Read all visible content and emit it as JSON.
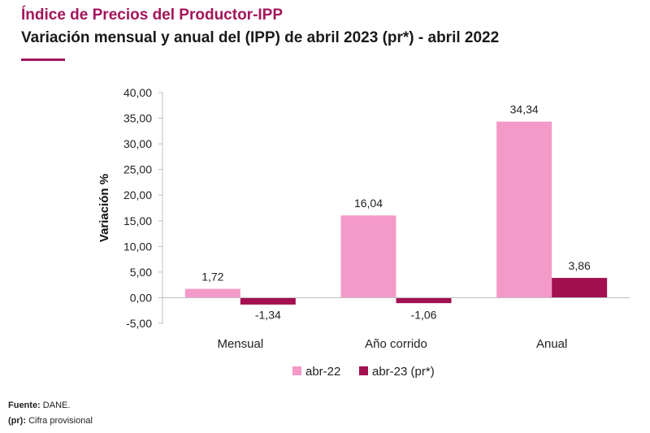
{
  "header": {
    "title": "Índice de Precios del Productor-IPP",
    "subtitle": "Variación mensual y anual del (IPP) de abril 2023 (pr*) - abril 2022"
  },
  "colors": {
    "accent": "#a3155a",
    "series_1": "#f49ac8",
    "series_2": "#a3104f"
  },
  "chart_data": {
    "type": "bar",
    "title": "",
    "xlabel": "",
    "ylabel": "Variación %",
    "categories": [
      "Mensual",
      "Año corrido",
      "Anual"
    ],
    "series": [
      {
        "name": "abr-22",
        "values": [
          1.72,
          16.04,
          34.34
        ],
        "labels": [
          "1,72",
          "16,04",
          "34,34"
        ]
      },
      {
        "name": "abr-23 (pr*)",
        "values": [
          -1.34,
          -1.06,
          3.86
        ],
        "labels": [
          "-1,34",
          "-1,06",
          "3,86"
        ]
      }
    ],
    "ylim": [
      -5,
      40
    ],
    "yticks": [
      -5,
      0,
      5,
      10,
      15,
      20,
      25,
      30,
      35,
      40
    ],
    "ytick_labels": [
      "-5,00",
      "0,00",
      "5,00",
      "10,00",
      "15,00",
      "20,00",
      "25,00",
      "30,00",
      "35,00",
      "40,00"
    ],
    "grid": false,
    "legend": "bottom"
  },
  "footer": {
    "source_label": "Fuente:",
    "source_value": "DANE.",
    "prov_label": "(pr):",
    "prov_value": "Cifra provisional"
  }
}
